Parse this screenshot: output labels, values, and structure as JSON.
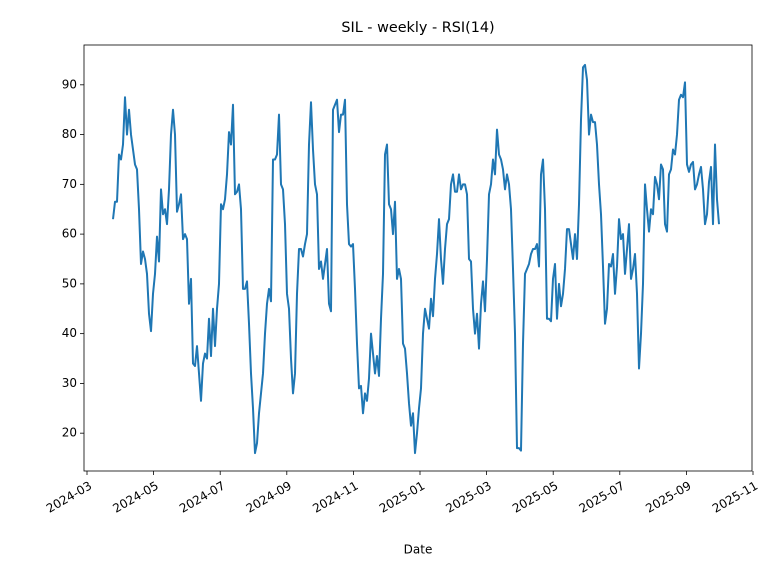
{
  "chart_data": {
    "type": "line",
    "title": "SIL - weekly - RSI(14)",
    "xlabel": "Date",
    "color": "#1f77b4",
    "xticks": [
      "2024-03",
      "2024-05",
      "2024-07",
      "2024-09",
      "2024-11",
      "2025-01",
      "2025-03",
      "2025-05",
      "2025-07",
      "2025-09",
      "2025-11"
    ],
    "ylim": [
      12.4,
      98.0
    ],
    "yticks": [
      20,
      30,
      40,
      50,
      60,
      70,
      80,
      90
    ],
    "values": [
      63,
      66.5,
      66.5,
      76,
      75,
      78,
      87.5,
      80,
      85,
      80,
      77,
      74,
      73,
      65,
      54,
      56.5,
      55,
      52,
      44,
      40.5,
      48,
      52,
      59.5,
      54.5,
      69,
      64,
      65,
      62,
      69,
      80,
      85,
      80,
      64.5,
      66,
      68,
      59,
      60,
      59,
      46,
      51,
      34,
      33.5,
      37.5,
      32,
      26.5,
      34,
      36,
      35,
      43,
      35.5,
      45,
      37.5,
      45,
      50,
      66,
      65,
      67,
      72,
      80.5,
      78,
      86,
      68,
      68.5,
      70,
      65,
      49,
      49,
      50.5,
      42,
      32,
      25,
      16,
      18,
      24,
      28,
      32,
      40,
      46,
      49,
      46.5,
      75,
      75,
      76,
      84,
      70,
      69,
      62,
      48,
      45,
      35,
      28,
      32,
      48,
      57,
      57,
      55.5,
      58,
      60,
      78,
      86.5,
      77,
      70,
      68,
      53,
      54.5,
      51,
      54,
      57,
      46,
      44.5,
      85,
      86,
      87,
      80.5,
      84,
      84,
      87,
      66,
      58,
      57.5,
      58,
      49,
      38,
      29,
      29.5,
      24,
      28,
      26.5,
      31,
      40,
      36,
      32,
      35.5,
      31.5,
      43,
      52,
      76,
      78,
      66,
      65,
      60,
      66.5,
      51,
      53,
      51,
      38,
      37,
      32,
      26,
      21.5,
      24,
      16,
      20,
      25,
      29,
      40,
      45,
      43,
      41,
      47,
      43.5,
      51,
      56,
      63,
      55,
      50,
      57,
      62,
      63,
      70,
      72,
      68.5,
      68.5,
      72,
      69,
      70,
      70,
      68,
      55,
      54.5,
      45,
      40,
      44,
      37,
      46,
      50.5,
      44.5,
      55,
      68,
      70,
      75,
      72,
      81,
      76,
      75,
      73,
      69,
      72,
      70,
      65,
      53,
      40,
      17,
      17,
      16.5,
      38,
      52,
      53,
      54,
      56,
      57,
      57,
      58,
      53.5,
      72,
      75,
      65,
      43,
      43,
      42.5,
      51,
      54,
      43,
      50,
      45.5,
      48,
      53,
      61,
      61,
      58,
      55,
      60,
      55,
      66,
      83,
      93.5,
      94,
      91,
      80,
      84,
      82.5,
      82.5,
      78,
      70,
      64,
      53.5,
      42,
      45,
      54,
      53.5,
      56,
      48,
      53.5,
      63,
      59,
      60,
      52,
      57,
      62,
      51,
      53,
      56,
      48,
      33,
      40,
      50,
      70,
      65,
      60.5,
      65,
      64,
      71.5,
      70,
      67,
      74,
      73,
      62,
      60.5,
      72,
      73,
      77,
      76,
      80,
      87,
      88,
      87.5,
      90.5,
      74,
      72.5,
      74,
      74.5,
      69,
      70,
      72,
      73.5,
      69,
      62,
      64,
      70.5,
      73.5,
      62,
      78,
      67,
      62
    ]
  }
}
